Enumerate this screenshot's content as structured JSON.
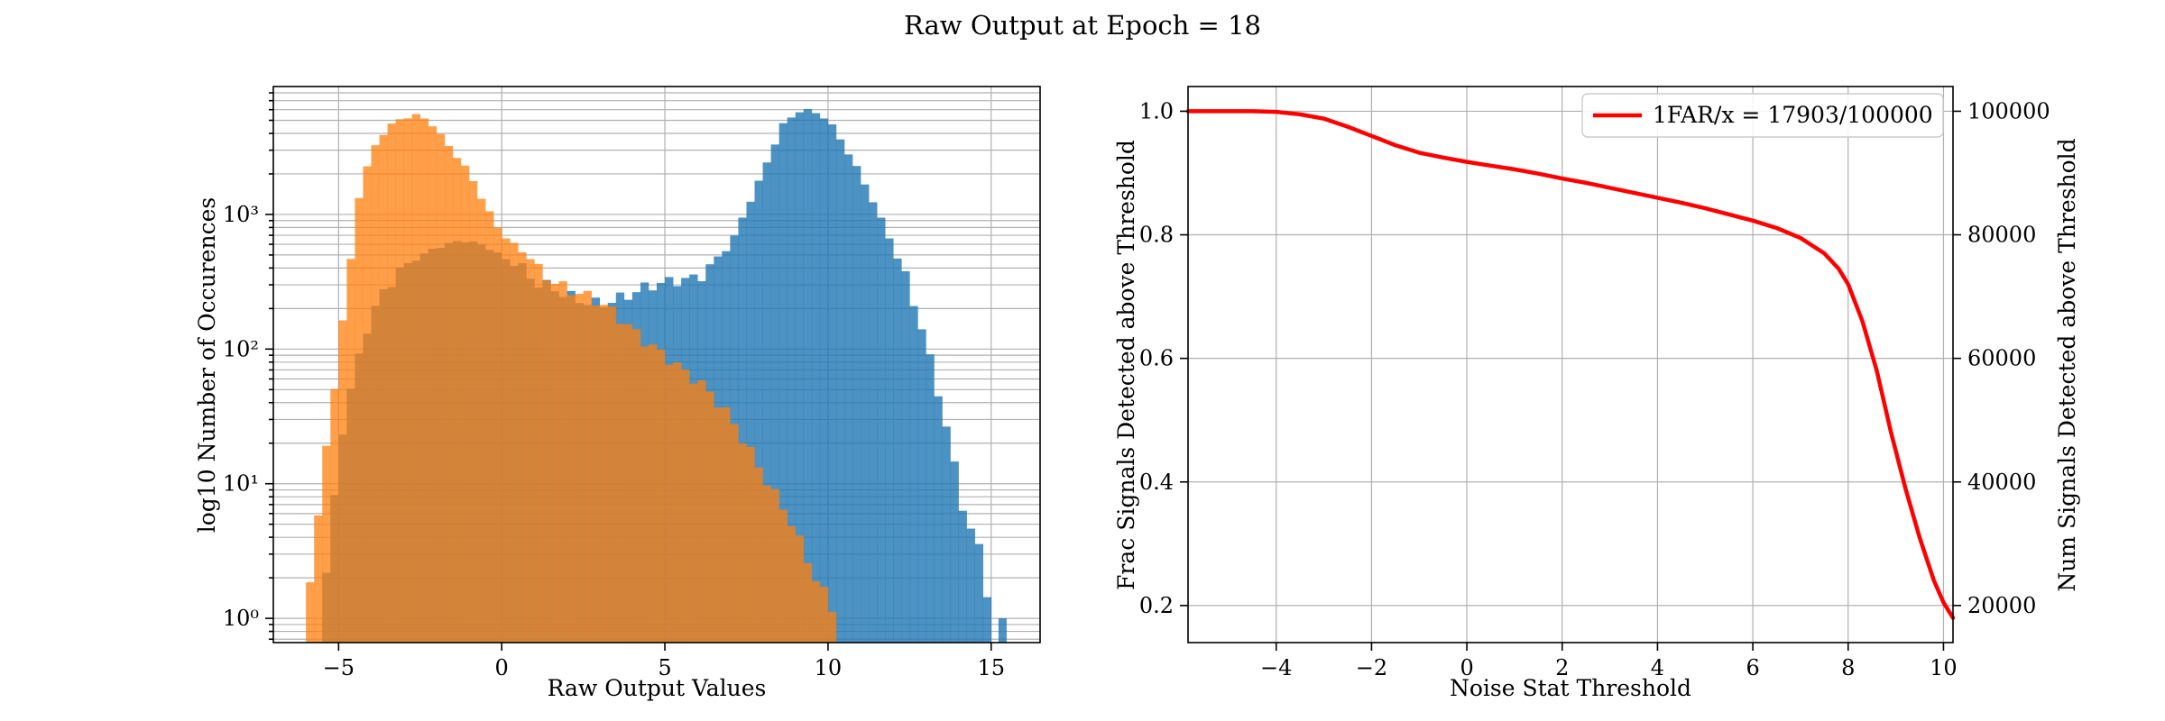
{
  "figure": {
    "title": "Raw Output at Epoch = 18"
  },
  "chart_data": [
    {
      "type": "histogram",
      "xlabel": "Raw Output Values",
      "ylabel": "log10 Number of Occurences",
      "xlim": [
        -7,
        16.5
      ],
      "ylim_log10": [
        -0.18,
        3.95
      ],
      "yscale": "log",
      "grid": true,
      "x_ticks": [
        -5,
        0,
        5,
        10,
        15
      ],
      "x_tick_labels": [
        "−5",
        "0",
        "5",
        "10",
        "15"
      ],
      "y_ticks": [
        1,
        10,
        100,
        1000
      ],
      "y_tick_labels": [
        "10⁰",
        "10¹",
        "10²",
        "10³"
      ],
      "bin_width": 0.25,
      "series": [
        {
          "color": "#1f77b4",
          "opacity": 0.8,
          "curve": [
            [
              -5.4,
              0.3
            ],
            [
              -4.8,
              1.6
            ],
            [
              -4,
              2.3
            ],
            [
              -3,
              2.6
            ],
            [
              -2,
              2.75
            ],
            [
              -1.2,
              2.82
            ],
            [
              -0.5,
              2.78
            ],
            [
              0.5,
              2.6
            ],
            [
              1,
              2.45
            ],
            [
              2,
              2.4
            ],
            [
              3,
              2.38
            ],
            [
              4,
              2.4
            ],
            [
              5,
              2.45
            ],
            [
              6,
              2.55
            ],
            [
              7,
              2.78
            ],
            [
              8,
              3.3
            ],
            [
              8.6,
              3.65
            ],
            [
              9.2,
              3.78
            ],
            [
              9.8,
              3.75
            ],
            [
              10.2,
              3.65
            ],
            [
              11,
              3.3
            ],
            [
              12,
              2.75
            ],
            [
              12.8,
              2.2
            ],
            [
              13.5,
              1.6
            ],
            [
              14.2,
              0.8
            ],
            [
              14.7,
              0.5
            ],
            [
              15,
              0
            ]
          ],
          "extra_points": [
            [
              15.35,
              0
            ]
          ]
        },
        {
          "color": "#ff7f0e",
          "opacity": 0.75,
          "curve": [
            [
              -5.9,
              0.3
            ],
            [
              -5.5,
              1
            ],
            [
              -5.2,
              1.6
            ],
            [
              -4.8,
              2.3
            ],
            [
              -4.4,
              3.1
            ],
            [
              -4,
              3.45
            ],
            [
              -3.5,
              3.65
            ],
            [
              -3,
              3.73
            ],
            [
              -2.6,
              3.75
            ],
            [
              -2.2,
              3.7
            ],
            [
              -1.6,
              3.5
            ],
            [
              -1,
              3.3
            ],
            [
              -0.5,
              3.05
            ],
            [
              0,
              2.85
            ],
            [
              0.8,
              2.7
            ],
            [
              2,
              2.45
            ],
            [
              3,
              2.3
            ],
            [
              4,
              2.15
            ],
            [
              5,
              2
            ],
            [
              6,
              1.75
            ],
            [
              7,
              1.45
            ],
            [
              8,
              1.1
            ],
            [
              8.8,
              0.8
            ],
            [
              9.6,
              0.3
            ],
            [
              10.2,
              0
            ]
          ]
        }
      ]
    },
    {
      "type": "line",
      "xlabel": "Noise Stat Threshold",
      "ylabel": "Frac Signals Detected above Threshold",
      "ylabel_right": "Num Signals Detected above Threshold",
      "xlim": [
        -5.85,
        10.2
      ],
      "ylim": [
        0.14,
        1.04
      ],
      "grid": true,
      "legend_position": "top-right",
      "x_ticks": [
        -4,
        -2,
        0,
        2,
        4,
        6,
        8,
        10
      ],
      "x_tick_labels": [
        "−4",
        "−2",
        "0",
        "2",
        "4",
        "6",
        "8",
        "10"
      ],
      "y_ticks": [
        0.2,
        0.4,
        0.6,
        0.8,
        1.0
      ],
      "y_tick_labels": [
        "0.2",
        "0.4",
        "0.6",
        "0.8",
        "1.0"
      ],
      "y_right_ticks": [
        20000,
        40000,
        60000,
        80000,
        100000
      ],
      "y_right_tick_labels": [
        "20000",
        "40000",
        "60000",
        "80000",
        "100000"
      ],
      "series": [
        {
          "name": "1FAR/x = 17903/100000",
          "color": "#ff0000",
          "x": [
            -5.85,
            -5,
            -4.5,
            -4,
            -3.5,
            -3,
            -2.5,
            -2,
            -1.5,
            -1,
            -0.5,
            0,
            0.5,
            1,
            1.5,
            2,
            2.5,
            3,
            3.5,
            4,
            4.5,
            5,
            5.5,
            6,
            6.5,
            7,
            7.5,
            7.8,
            8,
            8.3,
            8.6,
            8.9,
            9.2,
            9.5,
            9.8,
            10,
            10.2
          ],
          "y": [
            1.0,
            1.0,
            1.0,
            0.999,
            0.995,
            0.988,
            0.975,
            0.96,
            0.945,
            0.933,
            0.925,
            0.918,
            0.912,
            0.906,
            0.899,
            0.891,
            0.884,
            0.876,
            0.868,
            0.86,
            0.852,
            0.843,
            0.833,
            0.823,
            0.811,
            0.795,
            0.77,
            0.745,
            0.72,
            0.66,
            0.58,
            0.48,
            0.39,
            0.31,
            0.24,
            0.205,
            0.18
          ]
        }
      ]
    }
  ]
}
